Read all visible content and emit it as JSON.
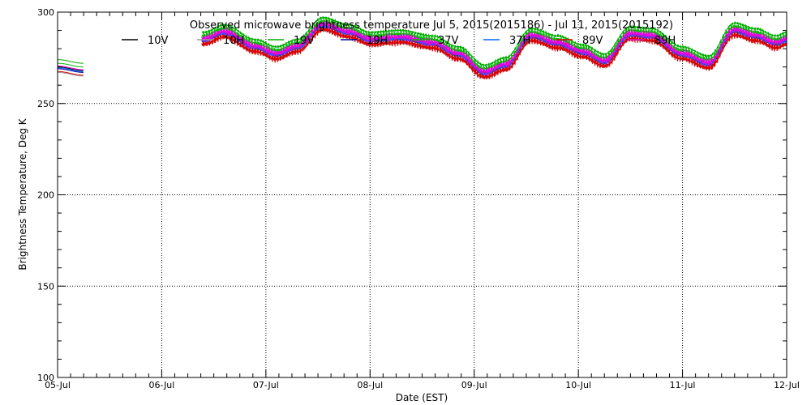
{
  "chart_data": {
    "type": "line",
    "title": "Observed microwave brightness temperature Jul  5, 2015(2015186) - Jul 11, 2015(2015192)",
    "xlabel": "Date (EST)",
    "ylabel": "Brightness Temperature, Deg K",
    "ylim": [
      100,
      300
    ],
    "xlim_days": [
      5,
      12
    ],
    "yticks": [
      100,
      150,
      200,
      250,
      300
    ],
    "ytick_labels": [
      "100",
      "150",
      "200",
      "250",
      "300"
    ],
    "x_tick_labels": [
      "05-Jul",
      "06-Jul",
      "07-Jul",
      "08-Jul",
      "09-Jul",
      "10-Jul",
      "11-Jul",
      "12-Jul"
    ],
    "x_tick_days": [
      5,
      6,
      7,
      8,
      9,
      10,
      11,
      12
    ],
    "grid": true,
    "legend_position": "top",
    "base_curve": {
      "x": [
        5.0,
        5.25,
        6.4,
        6.6,
        6.9,
        7.1,
        7.3,
        7.55,
        7.8,
        8.0,
        8.3,
        8.6,
        8.85,
        9.1,
        9.3,
        9.55,
        9.8,
        10.05,
        10.25,
        10.5,
        10.7,
        11.0,
        11.25,
        11.5,
        11.7,
        11.9,
        12.0
      ],
      "y": [
        270,
        268,
        285,
        289,
        281,
        277,
        281,
        293,
        289,
        285,
        286,
        283,
        277,
        267,
        271,
        287,
        283,
        278,
        273,
        288,
        287,
        277,
        272,
        290,
        287,
        283,
        285
      ]
    },
    "data_gap_days": [
      5.25,
      6.38
    ],
    "series": [
      {
        "name": "10V",
        "color": "#000000",
        "offset": 0
      },
      {
        "name": "10H",
        "color": "#999999",
        "offset": -3
      },
      {
        "name": "19V",
        "color": "#00aa00",
        "offset": 4
      },
      {
        "name": "19H",
        "color": "#000099",
        "offset": -1
      },
      {
        "name": "37V",
        "color": "#00bb00",
        "offset": 2
      },
      {
        "name": "37H",
        "color": "#0066ff",
        "offset": -0.5
      },
      {
        "name": "89V",
        "color": "#dd0000",
        "offset": -2.5
      },
      {
        "name": "89H",
        "color": "#ee00dd",
        "offset": 0.5
      }
    ]
  }
}
